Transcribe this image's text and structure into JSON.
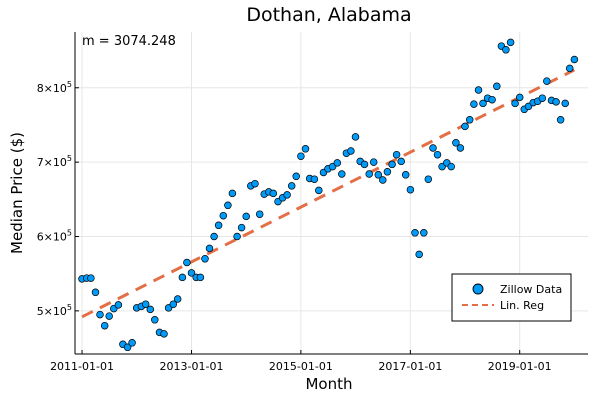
{
  "chart_data": {
    "type": "scatter",
    "title": "Dothan, Alabama",
    "xlabel": "Month",
    "ylabel": "Median Price ($)",
    "annotation": "m = 3074.248",
    "x_ticks": [
      "2011-01-01",
      "2013-01-01",
      "2015-01-01",
      "2017-01-01",
      "2019-01-01"
    ],
    "y_ticks": [
      {
        "value": 500000,
        "mantissa": "5",
        "base": "×10",
        "exp": "5"
      },
      {
        "value": 600000,
        "mantissa": "6",
        "base": "×10",
        "exp": "5"
      },
      {
        "value": 700000,
        "mantissa": "7",
        "base": "×10",
        "exp": "5"
      },
      {
        "value": 800000,
        "mantissa": "8",
        "base": "×10",
        "exp": "5"
      }
    ],
    "x_range": [
      "2010-11-15",
      "2020-04-01"
    ],
    "ylim": [
      442000,
      875000
    ],
    "grid": true,
    "legend_position": "bottom-right",
    "series": [
      {
        "name": "Zillow Data",
        "style": "scatter",
        "color": "#009af9",
        "x": [
          "2011-01-01",
          "2011-02-01",
          "2011-03-01",
          "2011-04-01",
          "2011-05-01",
          "2011-06-01",
          "2011-07-01",
          "2011-08-01",
          "2011-09-01",
          "2011-10-01",
          "2011-11-01",
          "2011-12-01",
          "2012-01-01",
          "2012-02-01",
          "2012-03-01",
          "2012-04-01",
          "2012-05-01",
          "2012-06-01",
          "2012-07-01",
          "2012-08-01",
          "2012-09-01",
          "2012-10-01",
          "2012-11-01",
          "2012-12-01",
          "2013-01-01",
          "2013-02-01",
          "2013-03-01",
          "2013-04-01",
          "2013-05-01",
          "2013-06-01",
          "2013-07-01",
          "2013-08-01",
          "2013-09-01",
          "2013-10-01",
          "2013-11-01",
          "2013-12-01",
          "2014-01-01",
          "2014-02-01",
          "2014-03-01",
          "2014-04-01",
          "2014-05-01",
          "2014-06-01",
          "2014-07-01",
          "2014-08-01",
          "2014-09-01",
          "2014-10-01",
          "2014-11-01",
          "2014-12-01",
          "2015-01-01",
          "2015-02-01",
          "2015-03-01",
          "2015-04-01",
          "2015-05-01",
          "2015-06-01",
          "2015-07-01",
          "2015-08-01",
          "2015-09-01",
          "2015-10-01",
          "2015-11-01",
          "2015-12-01",
          "2016-01-01",
          "2016-02-01",
          "2016-03-01",
          "2016-04-01",
          "2016-05-01",
          "2016-06-01",
          "2016-07-01",
          "2016-08-01",
          "2016-09-01",
          "2016-10-01",
          "2016-11-01",
          "2016-12-01",
          "2017-01-01",
          "2017-02-01",
          "2017-03-01",
          "2017-04-01",
          "2017-05-01",
          "2017-06-01",
          "2017-07-01",
          "2017-08-01",
          "2017-09-01",
          "2017-10-01",
          "2017-11-01",
          "2017-12-01",
          "2018-01-01",
          "2018-02-01",
          "2018-03-01",
          "2018-04-01",
          "2018-05-01",
          "2018-06-01",
          "2018-07-01",
          "2018-08-01",
          "2018-09-01",
          "2018-10-01",
          "2018-11-01",
          "2018-12-01",
          "2019-01-01",
          "2019-02-01",
          "2019-03-01",
          "2019-04-01",
          "2019-05-01",
          "2019-06-01",
          "2019-07-01",
          "2019-08-01",
          "2019-09-01",
          "2019-10-01",
          "2019-11-01"
        ],
        "y": [
          543000,
          544000,
          544000,
          525000,
          495000,
          480000,
          493000,
          503000,
          508000,
          455000,
          451000,
          457000,
          504000,
          506000,
          509000,
          502000,
          488000,
          471000,
          469000,
          504000,
          509000,
          516000,
          545000,
          565000,
          551000,
          545000,
          545000,
          570000,
          584000,
          600000,
          615000,
          628000,
          642000,
          658000,
          600000,
          612000,
          627000,
          668000,
          671000,
          630000,
          657000,
          660000,
          658000,
          647000,
          652000,
          656000,
          668000,
          681000,
          708000,
          718000,
          678000,
          677000,
          662000,
          686000,
          691000,
          694000,
          699000,
          684000,
          712000,
          715000,
          734000,
          701000,
          697000,
          684000,
          700000,
          683000,
          676000,
          687000,
          697000,
          710000,
          701000,
          683000,
          663000,
          605000,
          576000,
          605000,
          677000,
          719000,
          710000,
          694000,
          699000,
          694000,
          726000,
          719000,
          748000,
          757000,
          778000,
          797000,
          779000,
          786000,
          784000,
          802000,
          856000,
          851000,
          861000,
          779000,
          787000,
          771000,
          775000,
          780000,
          782000,
          786000,
          809000,
          783000,
          781000,
          757000,
          779000
        ],
        "x_extra": [
          "2019-12-01",
          "2020-01-01"
        ],
        "y_extra": [
          826000,
          838000
        ]
      },
      {
        "name": "Lin. Reg",
        "style": "dashed-line",
        "color": "#e26f46",
        "x": [
          "2011-01-01",
          "2020-01-01"
        ],
        "y": [
          492000,
          824000
        ]
      }
    ]
  }
}
